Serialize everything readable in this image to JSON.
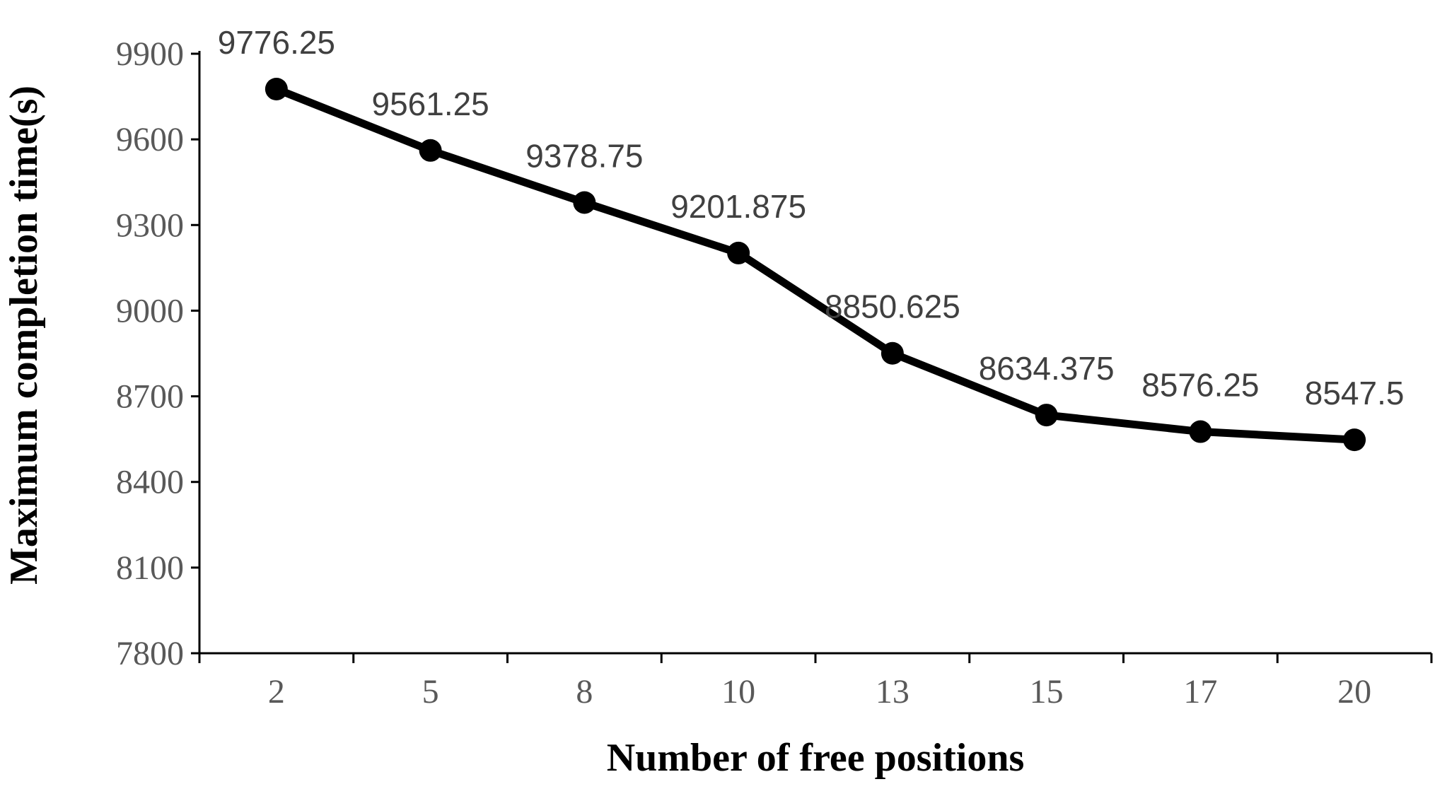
{
  "chart_data": {
    "type": "line",
    "title": "",
    "xlabel": "Number of free positions",
    "ylabel": "Maximum completion time(s)",
    "categories": [
      "2",
      "5",
      "8",
      "10",
      "13",
      "15",
      "17",
      "20"
    ],
    "series": [
      {
        "values": [
          9776.25,
          9561.25,
          9378.75,
          9201.875,
          8850.625,
          8634.375,
          8576.25,
          8547.5
        ],
        "data_labels": [
          "9776.25",
          "9561.25",
          "9378.75",
          "9201.875",
          "8850.625",
          "8634.375",
          "8576.25",
          "8547.5"
        ],
        "color": "#000000",
        "marker": "circle"
      }
    ],
    "ylim": [
      7800,
      9900
    ],
    "yticks": [
      7800,
      8100,
      8400,
      8700,
      9000,
      9300,
      9600,
      9900
    ],
    "grid": false,
    "legend": "none"
  }
}
